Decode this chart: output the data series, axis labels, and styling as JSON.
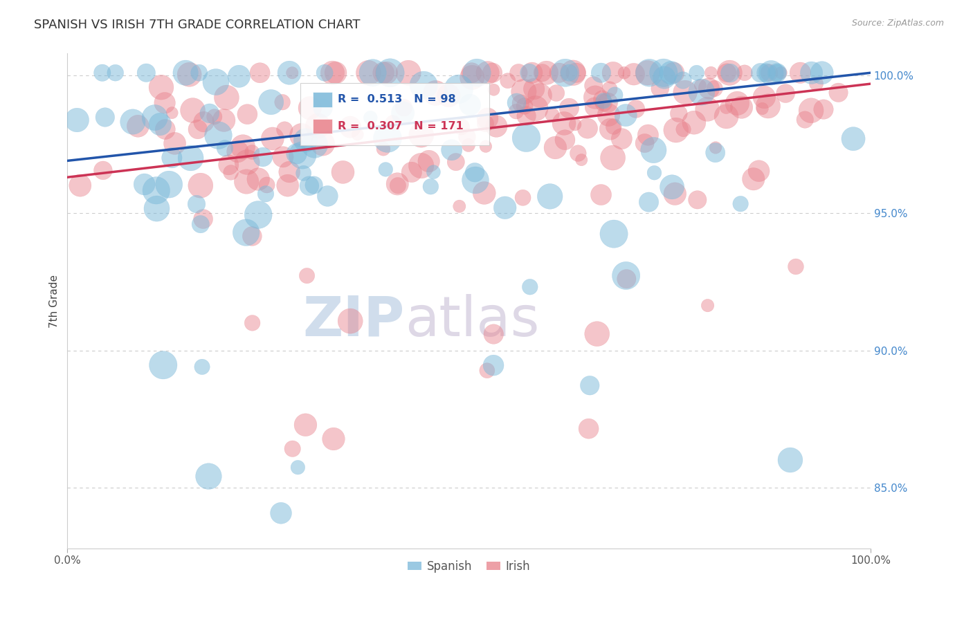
{
  "title": "SPANISH VS IRISH 7TH GRADE CORRELATION CHART",
  "source": "Source: ZipAtlas.com",
  "ylabel": "7th Grade",
  "xlim": [
    0.0,
    1.0
  ],
  "ylim": [
    0.828,
    1.008
  ],
  "spanish_R": 0.513,
  "spanish_N": 98,
  "irish_R": 0.307,
  "irish_N": 171,
  "spanish_color": "#7ab8d9",
  "irish_color": "#e8808a",
  "trend_spanish_color": "#2255aa",
  "trend_irish_color": "#cc3355",
  "background_color": "#ffffff",
  "watermark_color": "#d0dff0",
  "right_yticks": [
    0.85,
    0.9,
    0.95,
    1.0
  ],
  "right_yticklabels": [
    "85.0%",
    "90.0%",
    "95.0%",
    "100.0%"
  ],
  "seed": 12345,
  "trend_sp_y0": 0.969,
  "trend_sp_y1": 1.001,
  "trend_ir_y0": 0.963,
  "trend_ir_y1": 0.997
}
